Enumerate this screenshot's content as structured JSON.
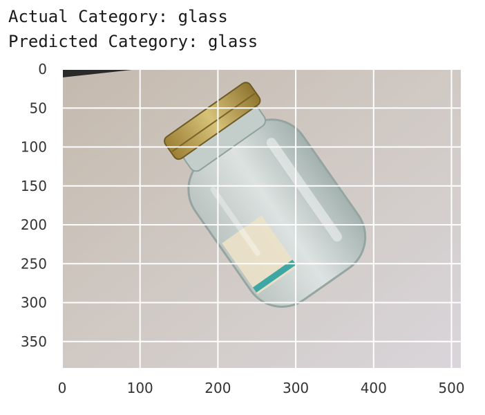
{
  "output": {
    "actual_line": "Actual Category: glass",
    "predicted_line": "Predicted Category: glass"
  },
  "chart_data": {
    "type": "image",
    "title": "",
    "xlabel": "",
    "ylabel": "",
    "xlim": [
      0,
      512
    ],
    "ylim": [
      384,
      0
    ],
    "x_ticks": [
      0,
      100,
      200,
      300,
      400,
      500
    ],
    "y_ticks": [
      0,
      50,
      100,
      150,
      200,
      250,
      300,
      350
    ],
    "grid": true,
    "image_content": "photo of a clear glass jar with gold metal lid lying diagonally on a light gray surface",
    "colors": {
      "background_surface": "#c9c0b6",
      "wall": "#d6d3d8",
      "grid": "#ffffff",
      "lid": "#b89a4a",
      "glass": "#aab9b6",
      "label_paper": "#e9dcc2",
      "label_teal": "#3fa7a3"
    }
  }
}
